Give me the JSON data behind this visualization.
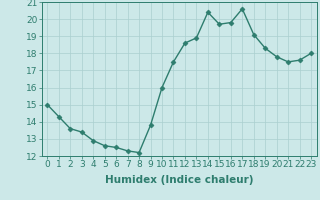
{
  "x": [
    0,
    1,
    2,
    3,
    4,
    5,
    6,
    7,
    8,
    9,
    10,
    11,
    12,
    13,
    14,
    15,
    16,
    17,
    18,
    19,
    20,
    21,
    22,
    23
  ],
  "y": [
    15.0,
    14.3,
    13.6,
    13.4,
    12.9,
    12.6,
    12.5,
    12.3,
    12.2,
    13.8,
    16.0,
    17.5,
    18.6,
    18.9,
    20.4,
    19.7,
    19.8,
    20.6,
    19.1,
    18.3,
    17.8,
    17.5,
    17.6,
    18.0
  ],
  "line_color": "#2e7d6e",
  "marker": "D",
  "marker_size": 2.5,
  "bg_color": "#cce8e8",
  "grid_color": "#aacfcf",
  "xlabel": "Humidex (Indice chaleur)",
  "ylim": [
    12,
    21
  ],
  "xlim": [
    -0.5,
    23.5
  ],
  "yticks": [
    12,
    13,
    14,
    15,
    16,
    17,
    18,
    19,
    20,
    21
  ],
  "xticks": [
    0,
    1,
    2,
    3,
    4,
    5,
    6,
    7,
    8,
    9,
    10,
    11,
    12,
    13,
    14,
    15,
    16,
    17,
    18,
    19,
    20,
    21,
    22,
    23
  ],
  "text_color": "#2e7d6e",
  "label_fontsize": 7.5,
  "tick_fontsize": 6.5,
  "linewidth": 1.0
}
